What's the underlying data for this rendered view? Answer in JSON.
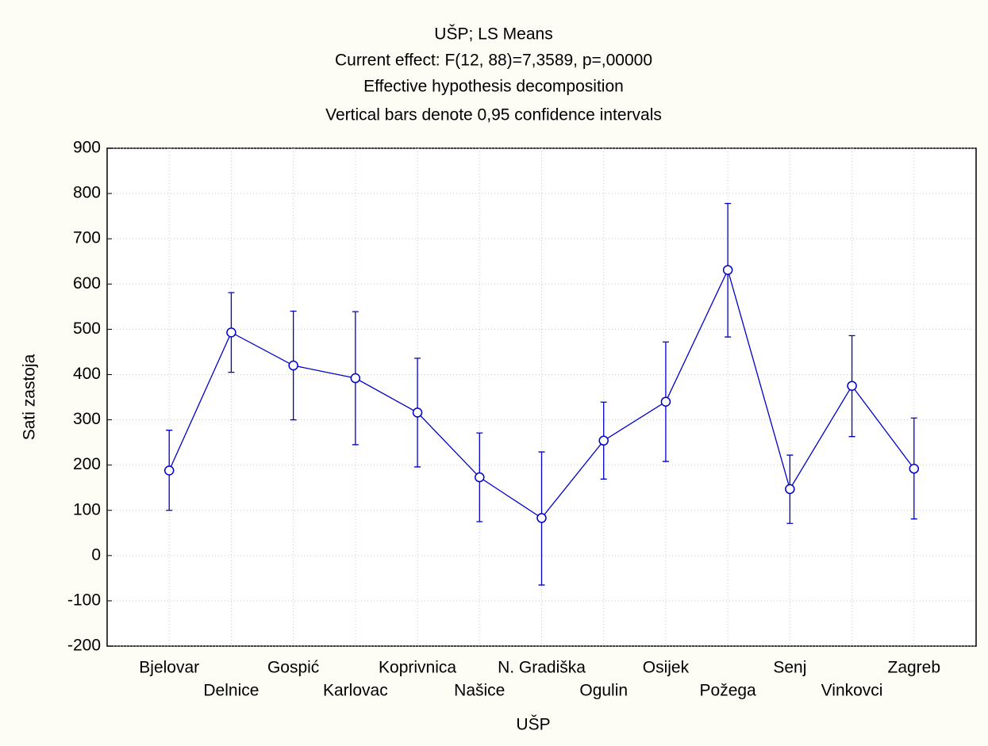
{
  "chart_data": {
    "type": "line",
    "title": "UŠP; LS Means",
    "subtitle": [
      "Current effect: F(12, 88)=7,3589, p=,00000",
      "Effective hypothesis decomposition",
      "Vertical bars denote 0,95 confidence intervals"
    ],
    "xlabel": "UŠP",
    "ylabel": "Sati zastoja",
    "categories": [
      "Bjelovar",
      "Delnice",
      "Gospić",
      "Karlovac",
      "Koprivnica",
      "Našice",
      "N. Gradiška",
      "Ogulin",
      "Osijek",
      "Požega",
      "Senj",
      "Vinkovci",
      "Zagreb"
    ],
    "series": [
      {
        "color": "#0000cc",
        "values": [
          188,
          493,
          420,
          392,
          316,
          173,
          83,
          254,
          340,
          631,
          147,
          375,
          192
        ],
        "lower": [
          100,
          405,
          300,
          245,
          196,
          75,
          -65,
          169,
          208,
          483,
          71,
          263,
          81
        ],
        "upper": [
          277,
          581,
          540,
          539,
          436,
          271,
          229,
          339,
          472,
          778,
          222,
          486,
          304
        ]
      }
    ],
    "ylim": [
      -200,
      900
    ],
    "yticks": [
      -200,
      -100,
      0,
      100,
      200,
      300,
      400,
      500,
      600,
      700,
      800,
      900
    ],
    "grid": true
  }
}
